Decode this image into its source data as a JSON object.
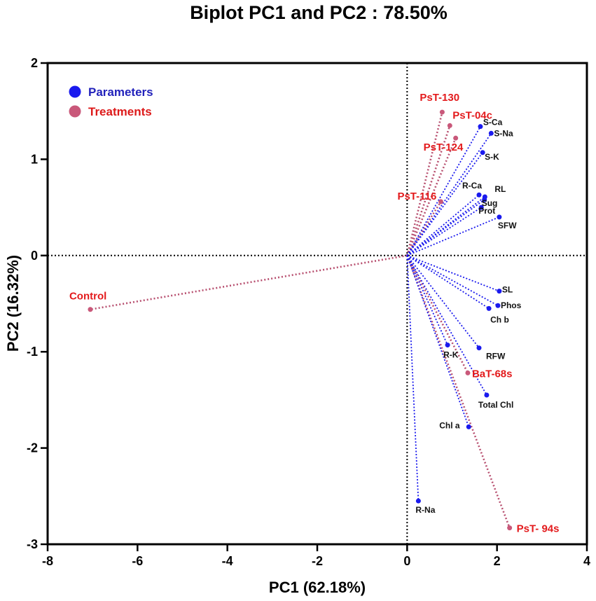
{
  "chart_data": {
    "type": "scatter",
    "title": "Biplot PC1 and PC2 : 78.50%",
    "xlabel": "PC1 (62.18%)",
    "ylabel": "PC2 (16.32%)",
    "xlim": [
      -8,
      4
    ],
    "ylim": [
      -3,
      2
    ],
    "xticks": [
      "-8",
      "-6",
      "-4",
      "-2",
      "0",
      "2",
      "4"
    ],
    "yticks": [
      "-3",
      "-2",
      "-1",
      "0",
      "1",
      "2"
    ],
    "legend": [
      {
        "name": "Parameters",
        "color": "#1a1aee"
      },
      {
        "name": "Treatments",
        "color": "#c9587a"
      }
    ],
    "legend_position": "top-left",
    "parameters": [
      {
        "label": "S-Ca",
        "x": 1.63,
        "y": 1.34
      },
      {
        "label": "S-Na",
        "x": 1.87,
        "y": 1.27
      },
      {
        "label": "S-K",
        "x": 1.68,
        "y": 1.07
      },
      {
        "label": "R-Ca",
        "x": 1.6,
        "y": 0.63
      },
      {
        "label": "RL",
        "x": 1.73,
        "y": 0.61
      },
      {
        "label": "Sug",
        "x": 1.72,
        "y": 0.58
      },
      {
        "label": "Prot",
        "x": 1.65,
        "y": 0.5
      },
      {
        "label": "SFW",
        "x": 2.05,
        "y": 0.4
      },
      {
        "label": "SL",
        "x": 2.05,
        "y": -0.37
      },
      {
        "label": "Phos",
        "x": 2.02,
        "y": -0.52
      },
      {
        "label": "Ch b",
        "x": 1.82,
        "y": -0.55
      },
      {
        "label": "RFW",
        "x": 1.6,
        "y": -0.96
      },
      {
        "label": "R-K",
        "x": 0.9,
        "y": -0.93
      },
      {
        "label": "Total Chl",
        "x": 1.77,
        "y": -1.45
      },
      {
        "label": "Chl a",
        "x": 1.37,
        "y": -1.78
      },
      {
        "label": "R-Na",
        "x": 0.25,
        "y": -2.55
      }
    ],
    "treatments": [
      {
        "label": "PsT-130",
        "x": 0.78,
        "y": 1.49
      },
      {
        "label": "PsT-04c",
        "x": 0.95,
        "y": 1.35
      },
      {
        "label": "PsT-124",
        "x": 1.08,
        "y": 1.22
      },
      {
        "label": "PsT-116",
        "x": 0.75,
        "y": 0.56
      },
      {
        "label": "Control",
        "x": -7.05,
        "y": -0.56
      },
      {
        "label": "BaT-68s",
        "x": 1.35,
        "y": -1.22
      },
      {
        "label": "PsT- 94s",
        "x": 2.28,
        "y": -2.83
      }
    ]
  },
  "colors": {
    "parameter": "#1a1aee",
    "treatment_point": "#c9587a",
    "treatment_line": "#b85070",
    "treatment_label": "#e31a1c",
    "legend_param_text": "#2222bb",
    "legend_treat_text": "#dd1a1a"
  }
}
